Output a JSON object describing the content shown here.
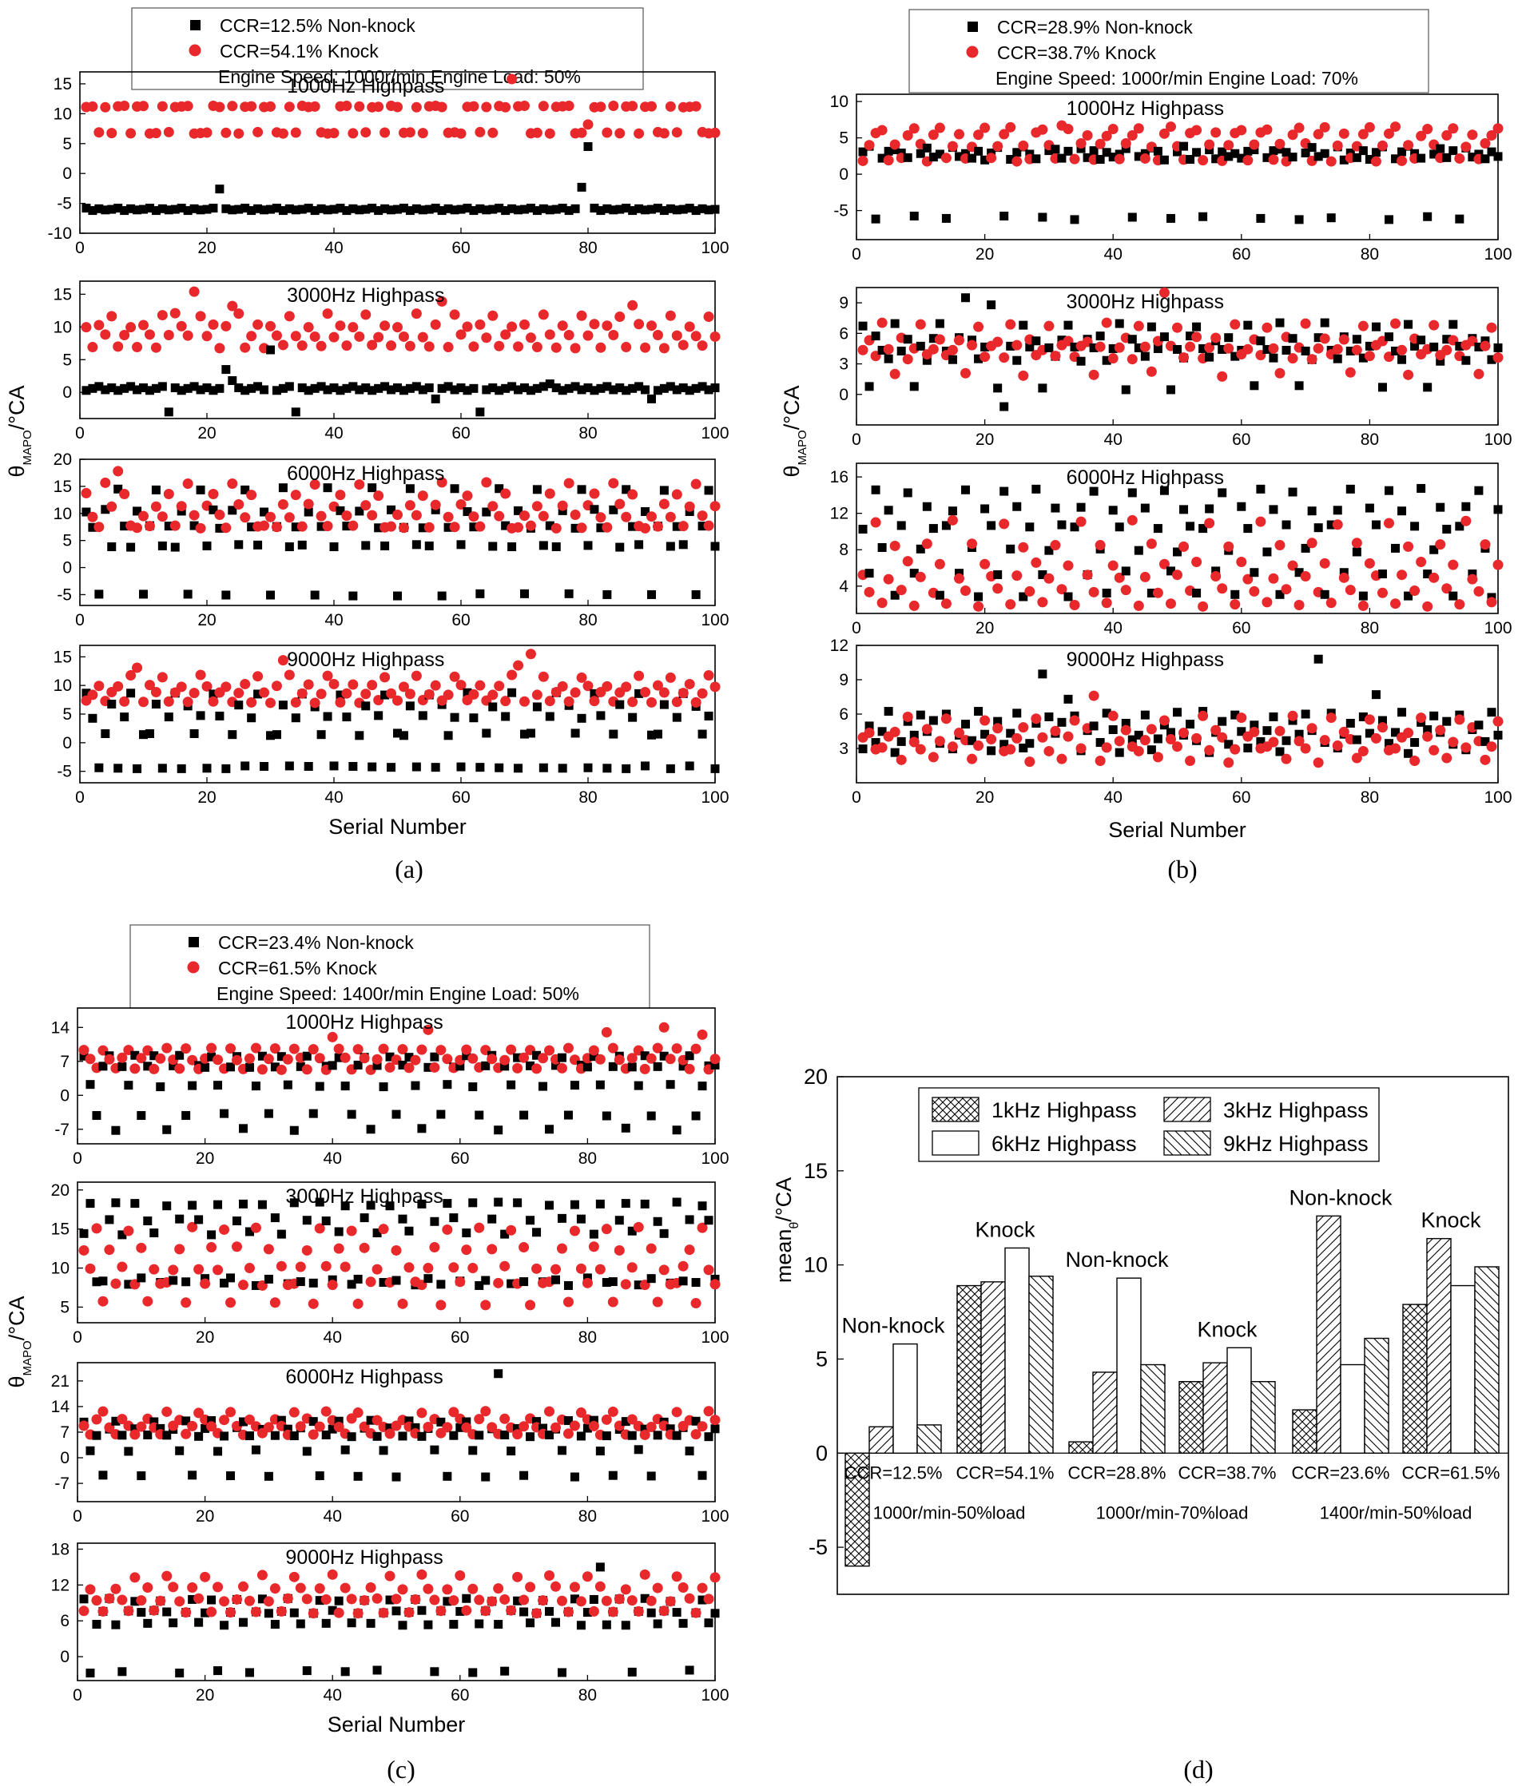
{
  "captions": [
    "(a)",
    "(b)",
    "(c)",
    "(d)"
  ],
  "colors": {
    "nonknock": "#000000",
    "knock": "#e8282b"
  },
  "chart_data": [
    {
      "id": "a",
      "type": "scatter",
      "legend": {
        "nonknock": "CCR=12.5% Non-knock",
        "knock": "CCR=54.1% Knock",
        "condition": "Engine Speed: 1000r/min Engine Load: 50%"
      },
      "ylabel_main": "θ",
      "ylabel_sub": "MAPO",
      "ylabel_unit": "/°CA",
      "xlabel": "Serial Number",
      "xlim": [
        0,
        100
      ],
      "xticks": [
        0,
        20,
        40,
        60,
        80,
        100
      ],
      "panels": [
        {
          "title": "1000Hz Highpass",
          "ylim": [
            -10,
            17
          ],
          "yticks": [
            -10,
            -5,
            0,
            5,
            10,
            15
          ],
          "nonknock": {
            "base": -6,
            "pattern": [
              0,
              0.2,
              -0.2,
              0.1,
              -0.1
            ],
            "outliers": {
              "21": -2.6,
              "78": -2.3,
              "79": 4.5
            }
          },
          "knock": {
            "levels": [
              6.8,
              11.2
            ],
            "pattern": [
              0,
              0,
              1,
              1,
              0,
              1,
              0,
              1,
              1,
              0,
              1,
              1,
              0,
              0,
              1,
              0,
              1,
              1,
              1,
              0
            ],
            "outliers": {
              "67": 15.8,
              "79": 8.2
            }
          }
        },
        {
          "title": "3000Hz Highpass",
          "ylim": [
            -4,
            17
          ],
          "yticks": [
            0,
            5,
            10,
            15
          ],
          "nonknock": {
            "base": 0.6,
            "pattern": [
              0,
              0.3,
              -0.2,
              0.1,
              -0.3
            ],
            "outliers": {
              "13": -3,
              "22": 3.5,
              "23": 1.8,
              "29": 6.5,
              "33": -3,
              "55": -1,
              "62": -3,
              "73": 1.3,
              "89": -1
            }
          },
          "knock": {
            "levels": [
              7.0,
              8.6,
              10.2,
              11.8
            ],
            "pattern": [
              1,
              0,
              2,
              1,
              0,
              3,
              1,
              2,
              0,
              2,
              1,
              3,
              0,
              1,
              2,
              0,
              2,
              1,
              0,
              3
            ],
            "outliers": {
              "17": 15.4,
              "23": 13.2,
              "56": 13.9,
              "86": 13.3,
              "14": 12.1
            }
          }
        },
        {
          "title": "6000Hz Highpass",
          "ylim": [
            -7,
            20
          ],
          "yticks": [
            -5,
            0,
            5,
            10,
            15,
            20
          ],
          "nonknock": {
            "levels": [
              -5,
              4,
              7.5,
              10.5,
              14.5
            ],
            "pattern": [
              2,
              1,
              3,
              0,
              2,
              4,
              1,
              3,
              2,
              0,
              3,
              1,
              4,
              2,
              1,
              3,
              0,
              2,
              4,
              1
            ]
          },
          "knock": {
            "levels": [
              7.5,
              9.5,
              11.5,
              13.5,
              15.5
            ],
            "pattern": [
              0,
              1,
              0,
              2,
              1,
              3,
              0,
              2,
              4,
              1,
              0,
              2,
              3,
              1,
              0,
              4,
              2,
              1,
              3,
              0
            ],
            "outliers": {
              "5": 17.8
            }
          }
        },
        {
          "title": "9000Hz Highpass",
          "ylim": [
            -7,
            17
          ],
          "yticks": [
            -5,
            0,
            5,
            10,
            15
          ],
          "nonknock": {
            "levels": [
              -4.3,
              1.5,
              4.5,
              6.5,
              8.5
            ],
            "pattern": [
              1,
              3,
              0,
              2,
              4,
              0,
              3,
              1,
              2,
              0,
              4,
              2,
              0,
              1,
              3,
              0,
              2,
              4,
              0,
              1
            ]
          },
          "knock": {
            "levels": [
              7.2,
              8.6,
              10,
              11.6
            ],
            "pattern": [
              0,
              1,
              2,
              0,
              3,
              1,
              0,
              2,
              1,
              3,
              0,
              1,
              2,
              0,
              1,
              3,
              2,
              0,
              1,
              2
            ],
            "outliers": {
              "8": 13.1,
              "31": 14.4,
              "70": 15.5,
              "68": 13.5
            }
          }
        }
      ]
    },
    {
      "id": "b",
      "type": "scatter",
      "legend": {
        "nonknock": "CCR=28.9% Non-knock",
        "knock": "CCR=38.7% Knock",
        "condition": "Engine Speed: 1000r/min Engine Load: 70%"
      },
      "ylabel_main": "θ",
      "ylabel_sub": "MAPO",
      "ylabel_unit": "/°CA",
      "xlabel": "Serial Number",
      "xlim": [
        0,
        100
      ],
      "xticks": [
        0,
        20,
        40,
        60,
        80,
        100
      ],
      "panels": [
        {
          "title": "1000Hz Highpass",
          "ylim": [
            -9,
            11
          ],
          "yticks": [
            -5,
            0,
            5,
            10
          ],
          "nonknock": {
            "levels": [
              -6,
              2.2,
              3,
              3.6
            ],
            "pattern": [
              1,
              2,
              3,
              0,
              1,
              2,
              3,
              2,
              1,
              0,
              2,
              3,
              1,
              2,
              0,
              3,
              1,
              2,
              1,
              2
            ]
          },
          "knock": {
            "levels": [
              2,
              4,
              5.5,
              6.3
            ],
            "pattern": [
              2,
              3,
              0,
              1,
              2,
              3,
              0,
              1,
              0,
              2,
              3,
              1,
              0,
              2,
              3,
              0,
              1,
              2,
              0,
              1
            ],
            "outliers": {
              "31": 6.7
            }
          }
        },
        {
          "title": "3000Hz Highpass",
          "ylim": [
            -3,
            10.5
          ],
          "yticks": [
            0,
            3,
            6,
            9
          ],
          "nonknock": {
            "levels": [
              0.7,
              3.5,
              4.5,
              5.5,
              6.8
            ],
            "pattern": [
              2,
              3,
              1,
              2,
              4,
              0,
              3,
              2,
              1,
              4,
              2,
              3,
              0,
              2,
              1,
              3,
              4,
              2,
              1,
              3
            ],
            "outliers": {
              "16": 9.5,
              "20": 8.8,
              "22": -1.2
            }
          },
          "knock": {
            "levels": [
              2,
              3.7,
              4.6,
              5.4,
              6.8
            ],
            "pattern": [
              1,
              2,
              3,
              0,
              2,
              4,
              1,
              2,
              3,
              1,
              4,
              2,
              0,
              3,
              1,
              2,
              4,
              1,
              2,
              3
            ],
            "outliers": {
              "47": 10
            }
          }
        },
        {
          "title": "6000Hz Highpass",
          "ylim": [
            1,
            17.5
          ],
          "yticks": [
            4,
            8,
            12,
            16
          ],
          "nonknock": {
            "levels": [
              3,
              5.5,
              8,
              10.5,
              12.5,
              14.5
            ],
            "pattern": [
              3,
              4,
              1,
              5,
              2,
              0,
              4,
              3,
              1,
              5,
              2,
              4,
              0,
              3,
              5,
              1,
              2,
              4,
              3,
              0
            ]
          },
          "knock": {
            "levels": [
              2,
              3.5,
              5,
              6.5,
              8.5,
              11
            ],
            "pattern": [
              0,
              2,
              4,
              1,
              3,
              0,
              5,
              2,
              1,
              4,
              0,
              3,
              2,
              1,
              5,
              0,
              2,
              4,
              1,
              3
            ]
          }
        },
        {
          "title": "9000Hz Highpass",
          "ylim": [
            0,
            12
          ],
          "yticks": [
            3,
            6,
            9,
            12
          ],
          "nonknock": {
            "levels": [
              2.8,
              3.6,
              4.4,
              5.2,
              6
            ],
            "pattern": [
              2,
              3,
              1,
              4,
              0,
              2,
              3,
              1,
              4,
              2,
              0,
              3,
              1,
              2,
              4,
              0,
              1,
              3,
              2,
              4
            ],
            "outliers": {
              "28": 9.5,
              "71": 10.8,
              "32": 7.3,
              "80": 7.7
            }
          },
          "knock": {
            "levels": [
              2,
              3,
              3.8,
              4.6,
              5.6
            ],
            "pattern": [
              1,
              2,
              3,
              0,
              4,
              2,
              1,
              3,
              0,
              2,
              4,
              1,
              3,
              2,
              0,
              1,
              4,
              2,
              3,
              1
            ],
            "outliers": {
              "36": 7.6
            }
          }
        }
      ]
    },
    {
      "id": "c",
      "type": "scatter",
      "legend": {
        "nonknock": "CCR=23.4% Non-knock",
        "knock": "CCR=61.5% Knock",
        "condition": "Engine Speed: 1400r/min Engine Load: 50%"
      },
      "ylabel_main": "θ",
      "ylabel_sub": "MAPO",
      "ylabel_unit": "/°CA",
      "xlabel": "Serial Number",
      "xlim": [
        0,
        100
      ],
      "xticks": [
        0,
        20,
        40,
        60,
        80,
        100
      ],
      "panels": [
        {
          "title": "1000Hz Highpass",
          "ylim": [
            -10,
            18
          ],
          "yticks": [
            -7,
            0,
            7,
            14
          ],
          "nonknock": {
            "levels": [
              -7,
              -4,
              2,
              6,
              8
            ],
            "pattern": [
              3,
              4,
              2,
              1,
              3,
              4,
              0,
              3,
              2,
              4,
              1,
              3,
              4,
              2,
              0,
              3,
              4,
              1,
              2,
              3
            ]
          },
          "knock": {
            "levels": [
              5.5,
              7.5,
              9.5
            ],
            "pattern": [
              0,
              1,
              2,
              1,
              0,
              2,
              1,
              0,
              1,
              2,
              0,
              1,
              2,
              0,
              1,
              2,
              1,
              0,
              2,
              1
            ],
            "outliers": {
              "39": 12,
              "54": 13.5,
              "82": 13,
              "91": 14,
              "97": 12.5
            }
          }
        },
        {
          "title": "3000Hz Highpass",
          "ylim": [
            3,
            21
          ],
          "yticks": [
            5,
            10,
            15,
            20
          ],
          "nonknock": {
            "levels": [
              8,
              8.5,
              14.5,
              16.2,
              18.2
            ],
            "pattern": [
              0,
              4,
              3,
              1,
              2,
              4,
              0,
              1,
              3,
              4,
              2,
              0,
              4,
              1,
              3,
              2,
              0,
              4,
              1,
              3
            ]
          },
          "knock": {
            "levels": [
              5.5,
              8,
              10,
              12.5,
              15
            ],
            "pattern": [
              1,
              2,
              3,
              0,
              4,
              2,
              1,
              3,
              2,
              4,
              0,
              3,
              1,
              2,
              4,
              1,
              3,
              0,
              2,
              1
            ]
          }
        },
        {
          "title": "6000Hz Highpass",
          "ylim": [
            -12,
            26
          ],
          "yticks": [
            -7,
            0,
            7,
            14,
            21
          ],
          "nonknock": {
            "levels": [
              -5,
              2,
              6,
              8,
              10
            ],
            "pattern": [
              2,
              3,
              1,
              4,
              0,
              2,
              3,
              4,
              1,
              2,
              0,
              3,
              4,
              2,
              1,
              3,
              0,
              2,
              4,
              3
            ],
            "outliers": {
              "65": 23
            }
          },
          "knock": {
            "levels": [
              6.5,
              8.5,
              10.5,
              12.5
            ],
            "pattern": [
              0,
              1,
              2,
              1,
              0,
              3,
              1,
              2,
              0,
              1,
              3,
              2,
              1,
              0,
              2,
              3,
              1,
              0,
              2,
              1
            ]
          }
        },
        {
          "title": "9000Hz Highpass",
          "ylim": [
            -4,
            19
          ],
          "yticks": [
            0,
            6,
            12,
            18
          ],
          "nonknock": {
            "levels": [
              -2.5,
              5.5,
              7.5,
              9.5
            ],
            "pattern": [
              1,
              2,
              3,
              2,
              1,
              0,
              2,
              3,
              1,
              2,
              3,
              0,
              1,
              2,
              3,
              1,
              0,
              2,
              3,
              2
            ],
            "outliers": {
              "81": 15
            }
          },
          "knock": {
            "levels": [
              7.5,
              9.5,
              11.5,
              13.5
            ],
            "pattern": [
              0,
              1,
              2,
              1,
              0,
              3,
              1,
              2,
              0,
              1,
              3,
              2,
              1,
              0,
              2,
              1,
              3,
              0,
              2,
              1
            ]
          }
        }
      ]
    },
    {
      "id": "d",
      "type": "bar",
      "ylabel_main": "mean",
      "ylabel_sub": "θ",
      "ylabel_unit": "/°CA",
      "ylim": [
        -7.5,
        20
      ],
      "yticks": [
        -5,
        0,
        5,
        10,
        15,
        20
      ],
      "legend_items": [
        "1kHz Highpass",
        "3kHz Highpass",
        "6kHz Highpass",
        "9kHz Highpass"
      ],
      "categories": [
        "CCR=12.5%",
        "CCR=54.1%",
        "CCR=28.8%",
        "CCR=38.7%",
        "CCR=23.6%",
        "CCR=61.5%"
      ],
      "group_labels": [
        "Non-knock",
        "Knock",
        "Non-knock",
        "Knock",
        "Non-knock",
        "Knock"
      ],
      "conditions": [
        "1000r/min-50%load",
        "1000r/min-70%load",
        "1400r/min-50%load"
      ],
      "series": [
        {
          "name": "1kHz Highpass",
          "values": [
            -6.0,
            8.9,
            0.6,
            3.8,
            2.3,
            7.9
          ]
        },
        {
          "name": "3kHz Highpass",
          "values": [
            1.4,
            9.1,
            4.3,
            4.8,
            12.6,
            11.4
          ]
        },
        {
          "name": "6kHz Highpass",
          "values": [
            5.8,
            10.9,
            9.3,
            5.6,
            4.7,
            8.9
          ]
        },
        {
          "name": "9kHz Highpass",
          "values": [
            1.5,
            9.4,
            4.7,
            3.8,
            6.1,
            9.9
          ]
        }
      ]
    }
  ]
}
